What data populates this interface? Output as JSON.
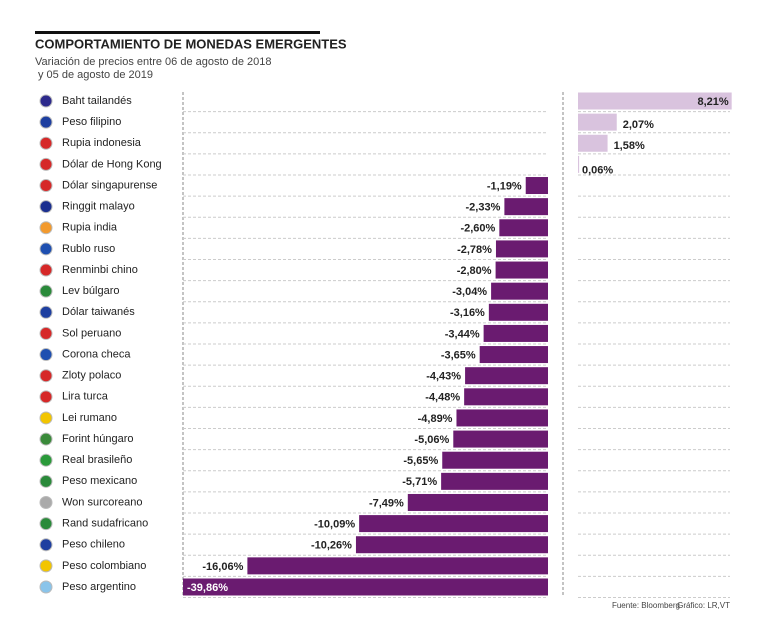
{
  "chart_data": {
    "type": "bar",
    "title": "COMPORTAMIENTO DE MONEDAS EMERGENTES",
    "subtitle": [
      "Variación de precios entre 06 de agosto de 2018",
      "y 05 de agosto de 2019"
    ],
    "categories": [
      "Baht tailandés",
      "Peso filipino",
      "Rupia indonesia",
      "Dólar de Hong Kong",
      "Dólar singapurense",
      "Ringgit malayo",
      "Rupia india",
      "Rublo ruso",
      "Renminbi chino",
      "Lev búlgaro",
      "Dólar taiwanés",
      "Sol peruano",
      "Corona checa",
      "Zloty polaco",
      "Lira turca",
      "Lei rumano",
      "Forint húngaro",
      "Real brasileño",
      "Peso mexicano",
      "Won surcoreano",
      "Rand sudafricano",
      "Peso chileno",
      "Peso colombiano",
      "Peso argentino"
    ],
    "values": [
      8.21,
      2.07,
      1.58,
      0.06,
      -1.19,
      -2.33,
      -2.6,
      -2.78,
      -2.8,
      -3.04,
      -3.16,
      -3.44,
      -3.65,
      -4.43,
      -4.48,
      -4.89,
      -5.06,
      -5.65,
      -5.71,
      -7.49,
      -10.09,
      -10.26,
      -16.06,
      -39.86
    ],
    "value_labels": [
      "8,21%",
      "2,07%",
      "1,58%",
      "0,06%",
      "-1,19%",
      "-2,33%",
      "-2,60%",
      "-2,78%",
      "-2,80%",
      "-3,04%",
      "-3,16%",
      "-3,44%",
      "-3,65%",
      "-4,43%",
      "-4,48%",
      "-4,89%",
      "-5,06%",
      "-5,65%",
      "-5,71%",
      "-7,49%",
      "-10,09%",
      "-10,26%",
      "-16,06%",
      "-39,86%"
    ],
    "color_positive": "#d9c3de",
    "color_negative": "#6a1b70",
    "xlim": [
      -19.5,
      8.3
    ],
    "source": "Fuente: Bloomberg",
    "credit": "Gráfico: LR,VT"
  }
}
